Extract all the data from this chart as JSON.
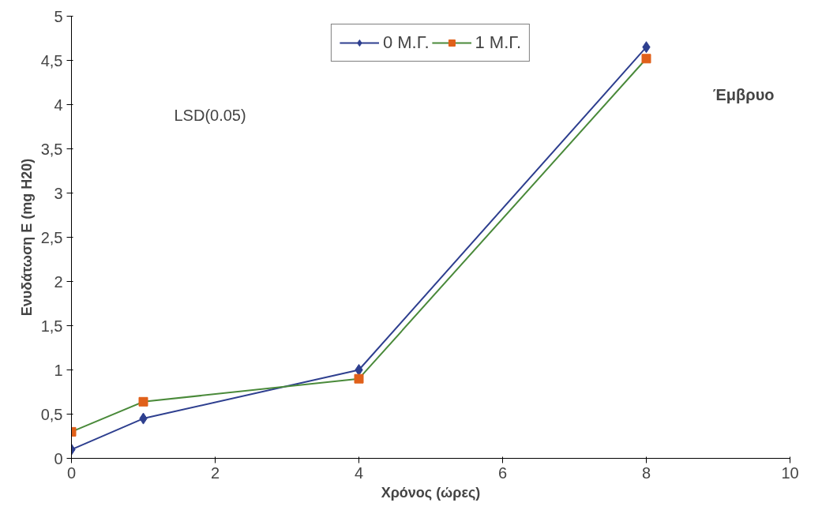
{
  "chart_data": {
    "type": "line",
    "xlabel": "Χρόνος (ώρες)",
    "ylabel": "Ενυδάτωση Ε (mg H20)",
    "x": [
      0,
      1,
      4,
      8
    ],
    "series": [
      {
        "name": "0 Μ.Γ.",
        "color": "#2e3f8f",
        "values": [
          0.1,
          0.45,
          1.0,
          4.65
        ],
        "marker": "diamond"
      },
      {
        "name": "1 Μ.Γ.",
        "color": "#4a8a3a",
        "values": [
          0.3,
          0.64,
          0.9,
          4.52
        ],
        "marker": "square",
        "colors": [
          "#e0601a",
          "#e0601a",
          "#e0601a",
          "#e0601a"
        ]
      }
    ],
    "xlim": [
      0,
      10
    ],
    "xticks": [
      0,
      2,
      4,
      6,
      8,
      10
    ],
    "ylim": [
      0,
      5
    ],
    "yticks": [
      0,
      {
        "value": 0.5,
        "label": "0,5"
      },
      1,
      {
        "value": 1.5,
        "label": "1,5"
      },
      2,
      {
        "value": 2.5,
        "label": "2,5"
      },
      3,
      {
        "value": 3.5,
        "label": "3,5"
      },
      4,
      {
        "value": 4.5,
        "label": "4,5"
      },
      5
    ],
    "annotations": [
      "LSD(0.05)",
      "Έμβρυο"
    ],
    "legend": "top",
    "grid": false
  }
}
